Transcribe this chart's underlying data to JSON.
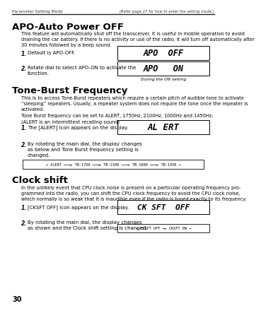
{
  "page_number": "30",
  "header_left": "Parameter Setting Mode",
  "header_right": "(Refer page 27 for how to enter the setting mode.)",
  "section1_title": "APO-Auto Power OFF",
  "section1_body": "This feature will automatically shut off the transceiver. It is useful in mobile operation to avoid\ndraining the car battery. If there is no activity or use of the radio, it will turn off automatically after\n30 minutes followed by a beep sound.",
  "section1_item1": "Default is APO-OFF.",
  "section1_item2": "Rotate dial to select APO-ON to activate the\nfunction.",
  "section1_caption": "During the ON setting",
  "apo_off_text": "APO  OFF",
  "apo_on_text": "APO   ON",
  "section2_title": "Tone-Burst Frequency",
  "section2_body1": "This is to access Tone-Burst repeaters which require a certain pitch of audible tone to activate\n“sleeping” repeaters. Usually, a repeater system does not require the tone once the repeater is\nactivated.",
  "section2_body2": "Tone Burst frequency can be set to ALERT, 1750Hz, 2100Hz, 1000Hz and 1450Hz.\n(ALERT is an intermittent recalling sound)",
  "section2_item1": "The [ALERT] icon appears on the display.",
  "section2_item2": "By rotating the main dial, the display changes\nas below and Tone Burst frequency setting is\nchanged.",
  "alert_text": "AL ERT",
  "tone_burst_chain": "← ALERT ───► TB-1750 ───► TB-2100 ───► TB-1000 ───► TB-1450 →",
  "section3_title": "Clock shift",
  "section3_body": "In the unlikely event that CPU clock noise is present on a particular operating frequency pro-\ngrammed into the radio, you can shift the CPU clock frequency to avoid the CPU clock noise,\nwhich normally is so weak that it is inaudible even if the radio is tuned exactly to its frequency.",
  "section3_item1": "[CKSFT OFF] icon appears on the display.",
  "section3_item2": "By rotating the main dial, the display changes\nas shown and the Clock shift setting is changed.",
  "cksft_text": "CK SFT  OFF",
  "cksft_chain": "→ CKSFT OFF ─► CKSFT ON →",
  "bg_color": "#ffffff",
  "text_color": "#000000",
  "box_bg": "#ffffff",
  "box_border": "#000000"
}
